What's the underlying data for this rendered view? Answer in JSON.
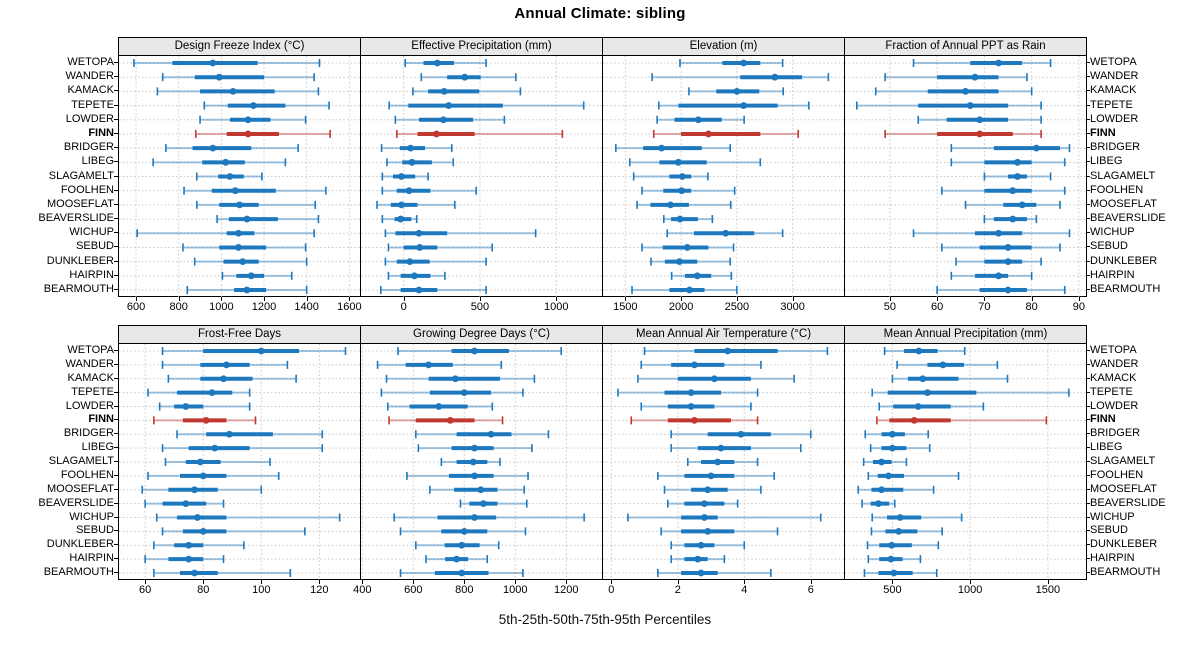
{
  "title": "Annual Climate: sibling",
  "caption": "5th-25th-50th-75th-95th Percentiles",
  "colors": {
    "series": "#1d78be",
    "highlight": "#c03830",
    "grid": "#c8c8c8",
    "header_bg": "#e8e8e8",
    "border": "#000000",
    "text": "#000000"
  },
  "chart_data": {
    "type": "trellis-percentile-dotplot",
    "title": "Annual Climate: sibling",
    "caption": "5th-25th-50th-75th-95th Percentiles",
    "percentiles": [
      5,
      25,
      50,
      75,
      95
    ],
    "legend": "none",
    "grid": "dotted",
    "stations": [
      "WETOPA",
      "WANDER",
      "KAMACK",
      "TEPETE",
      "LOWDER",
      "FINN",
      "BRIDGER",
      "LIBEG",
      "SLAGAMELT",
      "FOOLHEN",
      "MOOSEFLAT",
      "BEAVERSLIDE",
      "WICHUP",
      "SEBUD",
      "DUNKLEBER",
      "HAIRPIN",
      "BEARMOUTH"
    ],
    "highlight_station": "FINN",
    "panels": [
      {
        "title": "Design Freeze Index (°C)",
        "row": 0,
        "col": 0,
        "xlim": [
          520,
          1650
        ],
        "ticks": [
          600,
          800,
          1000,
          1200,
          1400,
          1600
        ],
        "values": [
          [
            590,
            770,
            960,
            1170,
            1460
          ],
          [
            725,
            875,
            990,
            1200,
            1435
          ],
          [
            700,
            900,
            1055,
            1250,
            1455
          ],
          [
            920,
            1030,
            1150,
            1300,
            1505
          ],
          [
            900,
            1040,
            1125,
            1230,
            1395
          ],
          [
            880,
            1025,
            1125,
            1270,
            1510
          ],
          [
            740,
            865,
            960,
            1140,
            1360
          ],
          [
            680,
            910,
            1020,
            1110,
            1300
          ],
          [
            885,
            985,
            1040,
            1105,
            1190
          ],
          [
            825,
            955,
            1065,
            1255,
            1490
          ],
          [
            885,
            990,
            1085,
            1175,
            1440
          ],
          [
            980,
            1035,
            1120,
            1265,
            1455
          ],
          [
            605,
            1025,
            1080,
            1155,
            1435
          ],
          [
            820,
            990,
            1080,
            1210,
            1395
          ],
          [
            875,
            1010,
            1100,
            1175,
            1400
          ],
          [
            1005,
            1070,
            1140,
            1200,
            1330
          ],
          [
            840,
            1060,
            1120,
            1210,
            1400
          ]
        ]
      },
      {
        "title": "Effective Precipitation (mm)",
        "row": 0,
        "col": 1,
        "xlim": [
          -280,
          1300
        ],
        "ticks": [
          0,
          500,
          1000
        ],
        "values": [
          [
            10,
            130,
            220,
            330,
            540
          ],
          [
            115,
            285,
            400,
            505,
            735
          ],
          [
            60,
            160,
            265,
            495,
            765
          ],
          [
            -95,
            30,
            295,
            650,
            1180
          ],
          [
            -55,
            100,
            260,
            455,
            660
          ],
          [
            -45,
            90,
            215,
            465,
            1040
          ],
          [
            -145,
            -25,
            45,
            140,
            315
          ],
          [
            -110,
            -10,
            55,
            185,
            325
          ],
          [
            -140,
            -70,
            -15,
            75,
            160
          ],
          [
            -140,
            -45,
            35,
            175,
            475
          ],
          [
            -175,
            -85,
            -15,
            90,
            335
          ],
          [
            -140,
            -60,
            -20,
            50,
            85
          ],
          [
            -120,
            -55,
            100,
            285,
            865
          ],
          [
            -100,
            0,
            105,
            220,
            580
          ],
          [
            -120,
            -45,
            40,
            170,
            540
          ],
          [
            -100,
            -20,
            70,
            175,
            270
          ],
          [
            -150,
            -20,
            100,
            220,
            540
          ]
        ]
      },
      {
        "title": "Elevation (m)",
        "row": 0,
        "col": 2,
        "xlim": [
          1300,
          3460
        ],
        "ticks": [
          1500,
          2000,
          2500,
          3000
        ],
        "values": [
          [
            1990,
            2370,
            2560,
            2710,
            2910
          ],
          [
            1740,
            2530,
            2840,
            3085,
            3320
          ],
          [
            2070,
            2315,
            2500,
            2700,
            2915
          ],
          [
            1800,
            1975,
            2560,
            2865,
            3145
          ],
          [
            1785,
            1940,
            2155,
            2365,
            2565
          ],
          [
            1755,
            2000,
            2245,
            2710,
            3050
          ],
          [
            1415,
            1660,
            1825,
            2185,
            2440
          ],
          [
            1540,
            1805,
            1975,
            2230,
            2710
          ],
          [
            1575,
            1895,
            2010,
            2090,
            2240
          ],
          [
            1650,
            1840,
            2005,
            2090,
            2480
          ],
          [
            1605,
            1725,
            1905,
            2070,
            2445
          ],
          [
            1845,
            1910,
            1990,
            2150,
            2280
          ],
          [
            1875,
            2115,
            2400,
            2655,
            2910
          ],
          [
            1650,
            1835,
            2055,
            2245,
            2470
          ],
          [
            1730,
            1855,
            1985,
            2145,
            2440
          ],
          [
            1915,
            2035,
            2145,
            2270,
            2450
          ],
          [
            1560,
            1895,
            2075,
            2210,
            2500
          ]
        ]
      },
      {
        "title": "Fraction of Annual PPT as Rain",
        "row": 0,
        "col": 3,
        "xlim": [
          40.5,
          91.5
        ],
        "ticks": [
          50,
          60,
          70,
          80,
          90
        ],
        "values": [
          [
            55,
            67,
            73,
            78,
            84
          ],
          [
            49,
            60,
            68,
            73,
            79
          ],
          [
            47,
            58,
            66,
            73,
            80
          ],
          [
            43,
            56,
            67,
            75,
            82
          ],
          [
            56,
            62,
            69,
            75,
            82
          ],
          [
            49,
            60,
            69,
            76,
            82
          ],
          [
            63,
            72,
            81,
            86,
            88
          ],
          [
            63,
            70,
            77,
            80,
            87
          ],
          [
            70,
            75,
            77,
            79,
            84
          ],
          [
            61,
            70,
            76,
            80,
            87
          ],
          [
            66,
            74,
            78,
            81,
            86
          ],
          [
            70,
            72,
            76,
            79,
            81
          ],
          [
            55,
            68,
            73,
            78,
            88
          ],
          [
            61,
            69,
            75,
            80,
            86
          ],
          [
            64,
            70,
            75,
            78,
            82
          ],
          [
            63,
            68,
            73,
            75,
            80
          ],
          [
            60,
            69,
            75,
            79,
            87
          ]
        ]
      },
      {
        "title": "Frost-Free Days",
        "row": 1,
        "col": 0,
        "xlim": [
          51,
          134
        ],
        "ticks": [
          60,
          80,
          100,
          120
        ],
        "values": [
          [
            66,
            80,
            100,
            113,
            129
          ],
          [
            66,
            79,
            88,
            96,
            109
          ],
          [
            68,
            79,
            87,
            97,
            112
          ],
          [
            61,
            71,
            83,
            90,
            96
          ],
          [
            65,
            70,
            74,
            80,
            96
          ],
          [
            63,
            73,
            81,
            88,
            98
          ],
          [
            71,
            81,
            89,
            104,
            121
          ],
          [
            66,
            75,
            84,
            96,
            121
          ],
          [
            67,
            74,
            79,
            86,
            103
          ],
          [
            61,
            72,
            80,
            88,
            106
          ],
          [
            59,
            68,
            77,
            85,
            100
          ],
          [
            60,
            66,
            74,
            81,
            87
          ],
          [
            64,
            71,
            78,
            88,
            127
          ],
          [
            66,
            73,
            80,
            88,
            115
          ],
          [
            63,
            70,
            75,
            80,
            94
          ],
          [
            60,
            68,
            75,
            80,
            87
          ],
          [
            63,
            72,
            77,
            85,
            110
          ]
        ]
      },
      {
        "title": "Growing Degree Days (°C)",
        "row": 1,
        "col": 1,
        "xlim": [
          395,
          1340
        ],
        "ticks": [
          400,
          600,
          800,
          1000,
          1200
        ],
        "values": [
          [
            540,
            750,
            840,
            975,
            1180
          ],
          [
            460,
            570,
            660,
            755,
            945
          ],
          [
            495,
            660,
            765,
            940,
            1075
          ],
          [
            475,
            665,
            800,
            905,
            1030
          ],
          [
            500,
            585,
            700,
            813,
            910
          ],
          [
            505,
            610,
            745,
            840,
            950
          ],
          [
            610,
            770,
            905,
            985,
            1130
          ],
          [
            620,
            750,
            840,
            915,
            1065
          ],
          [
            710,
            770,
            835,
            890,
            940
          ],
          [
            575,
            740,
            840,
            915,
            1050
          ],
          [
            665,
            760,
            865,
            930,
            1035
          ],
          [
            785,
            820,
            875,
            930,
            1045
          ],
          [
            525,
            695,
            840,
            925,
            1270
          ],
          [
            550,
            710,
            800,
            890,
            1040
          ],
          [
            610,
            723,
            790,
            860,
            935
          ],
          [
            650,
            725,
            770,
            815,
            890
          ],
          [
            550,
            685,
            790,
            895,
            1030
          ]
        ]
      },
      {
        "title": "Mean Annual Air Temperature (°C)",
        "row": 1,
        "col": 2,
        "xlim": [
          -0.25,
          7.0
        ],
        "ticks": [
          0,
          2,
          4,
          6
        ],
        "values": [
          [
            1.0,
            2.5,
            3.5,
            5.0,
            6.5
          ],
          [
            0.9,
            1.8,
            2.5,
            3.4,
            4.5
          ],
          [
            0.8,
            2.0,
            3.1,
            4.2,
            5.5
          ],
          [
            0.2,
            1.6,
            2.4,
            3.3,
            4.4
          ],
          [
            0.9,
            1.7,
            2.4,
            3.1,
            4.2
          ],
          [
            0.6,
            1.7,
            2.5,
            3.6,
            4.4
          ],
          [
            1.8,
            2.9,
            3.9,
            4.8,
            6.0
          ],
          [
            1.8,
            2.6,
            3.3,
            4.2,
            5.7
          ],
          [
            2.3,
            2.7,
            3.2,
            3.7,
            4.4
          ],
          [
            1.4,
            2.2,
            3.0,
            3.7,
            4.9
          ],
          [
            1.6,
            2.4,
            2.9,
            3.5,
            4.5
          ],
          [
            1.7,
            2.2,
            2.8,
            3.4,
            3.8
          ],
          [
            0.5,
            2.1,
            2.8,
            3.2,
            6.3
          ],
          [
            1.5,
            2.1,
            2.9,
            3.7,
            5.0
          ],
          [
            1.8,
            2.2,
            2.7,
            3.1,
            4.0
          ],
          [
            1.8,
            2.2,
            2.6,
            2.9,
            3.4
          ],
          [
            1.4,
            2.1,
            2.7,
            3.2,
            4.8
          ]
        ]
      },
      {
        "title": "Mean Annual Precipitation (mm)",
        "row": 1,
        "col": 3,
        "xlim": [
          195,
          1745
        ],
        "ticks": [
          500,
          1000,
          1500
        ],
        "values": [
          [
            450,
            575,
            670,
            790,
            965
          ],
          [
            530,
            725,
            825,
            960,
            1175
          ],
          [
            500,
            600,
            695,
            925,
            1240
          ],
          [
            370,
            470,
            725,
            1040,
            1635
          ],
          [
            415,
            505,
            665,
            875,
            1085
          ],
          [
            400,
            480,
            640,
            875,
            1490
          ],
          [
            325,
            430,
            500,
            580,
            730
          ],
          [
            360,
            430,
            500,
            590,
            740
          ],
          [
            315,
            375,
            430,
            495,
            590
          ],
          [
            345,
            405,
            475,
            575,
            925
          ],
          [
            280,
            365,
            430,
            570,
            765
          ],
          [
            305,
            360,
            410,
            480,
            515
          ],
          [
            370,
            465,
            550,
            685,
            945
          ],
          [
            365,
            455,
            540,
            660,
            820
          ],
          [
            340,
            415,
            495,
            625,
            795
          ],
          [
            345,
            415,
            490,
            565,
            680
          ],
          [
            320,
            410,
            510,
            630,
            785
          ]
        ]
      }
    ]
  }
}
